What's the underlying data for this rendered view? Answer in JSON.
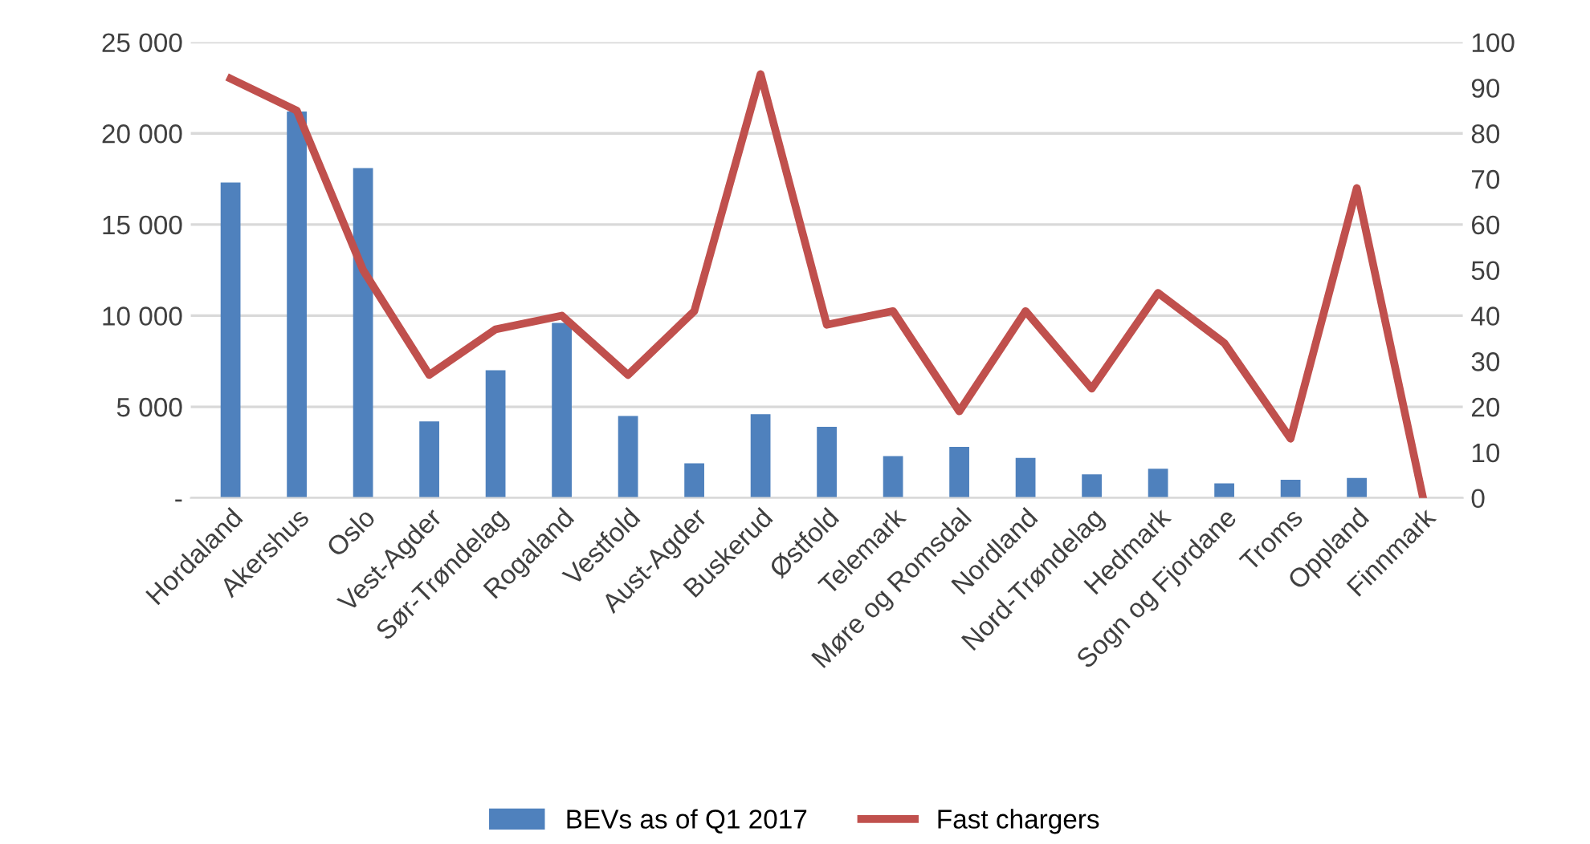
{
  "chart_data": {
    "type": "bar",
    "categories": [
      "Hordaland",
      "Akershus",
      "Oslo",
      "Vest-Agder",
      "Sør-Trøndelag",
      "Rogaland",
      "Vestfold",
      "Aust-Agder",
      "Buskerud",
      "Østfold",
      "Telemark",
      "Møre og Romsdal",
      "Nordland",
      "Nord-Trøndelag",
      "Hedmark",
      "Sogn og Fjordane",
      "Troms",
      "Oppland",
      "Finnmark"
    ],
    "series": [
      {
        "name": "BEVs as of Q1 2017",
        "color": "#4f81bd",
        "values": [
          17300,
          21200,
          18100,
          4200,
          7000,
          9600,
          4500,
          1900,
          4600,
          3900,
          2300,
          2800,
          2200,
          1300,
          1600,
          800,
          1000,
          1100,
          null
        ]
      },
      {
        "name": "Fast chargers",
        "color": "#c0504d",
        "type": "line",
        "axis": "y2",
        "values": [
          92,
          85,
          50,
          27,
          37,
          40,
          27,
          41,
          93,
          38,
          41,
          19,
          41,
          24,
          45,
          34,
          13,
          68,
          0
        ]
      }
    ],
    "ylim": [
      0,
      25000
    ],
    "yticks": [
      {
        "value": 0,
        "label": "-"
      },
      {
        "value": 5000,
        "label": "5 000"
      },
      {
        "value": 10000,
        "label": "10 000"
      },
      {
        "value": 15000,
        "label": "15 000"
      },
      {
        "value": 20000,
        "label": "20 000"
      },
      {
        "value": 25000,
        "label": "25 000"
      }
    ],
    "y2lim": [
      0,
      100
    ],
    "y2ticks": [
      0,
      10,
      20,
      30,
      40,
      50,
      60,
      70,
      80,
      90,
      100
    ],
    "grid": "y",
    "legend": "bottom",
    "marker": "none",
    "line_style": "solid"
  }
}
